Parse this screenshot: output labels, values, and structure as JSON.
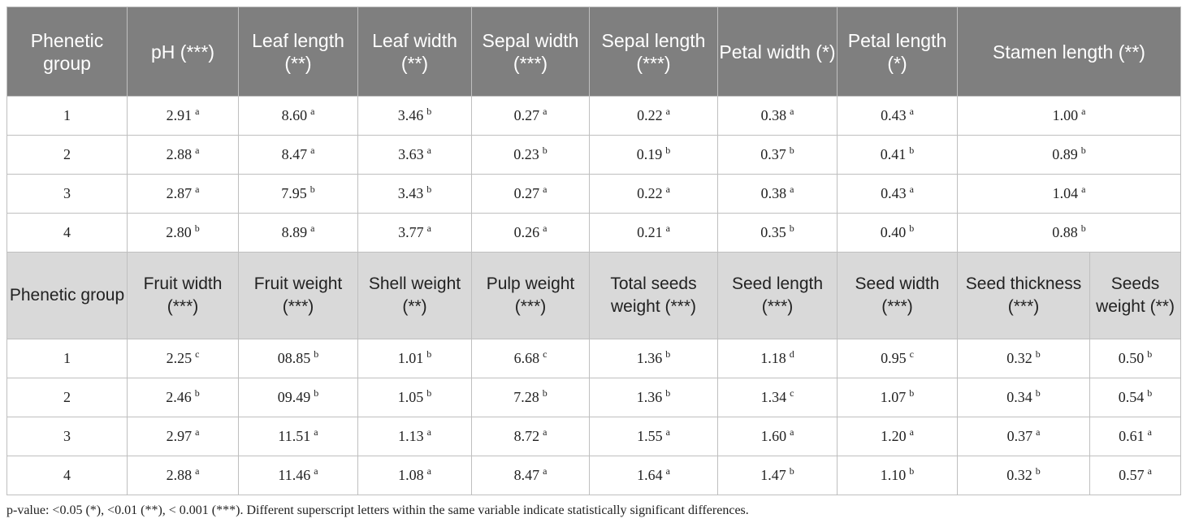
{
  "table1": {
    "headers": [
      "Phenetic group",
      "pH (***)",
      "Leaf length (**)",
      "Leaf width (**)",
      "Sepal width (***)",
      "Sepal length (***)",
      "Petal width (*)",
      "Petal length (*)",
      "Stamen length (**)"
    ],
    "rows": [
      {
        "group": "1",
        "cells": [
          [
            "2.91",
            "a"
          ],
          [
            "8.60",
            "a"
          ],
          [
            "3.46",
            "b"
          ],
          [
            "0.27",
            "a"
          ],
          [
            "0.22",
            "a"
          ],
          [
            "0.38",
            "a"
          ],
          [
            "0.43",
            "a"
          ],
          [
            "1.00",
            "a"
          ]
        ]
      },
      {
        "group": "2",
        "cells": [
          [
            "2.88",
            "a"
          ],
          [
            "8.47",
            "a"
          ],
          [
            "3.63",
            "a"
          ],
          [
            "0.23",
            "b"
          ],
          [
            "0.19",
            "b"
          ],
          [
            "0.37",
            "b"
          ],
          [
            "0.41",
            "b"
          ],
          [
            "0.89",
            "b"
          ]
        ]
      },
      {
        "group": "3",
        "cells": [
          [
            "2.87",
            "a"
          ],
          [
            "7.95",
            "b"
          ],
          [
            "3.43",
            "b"
          ],
          [
            "0.27",
            "a"
          ],
          [
            "0.22",
            "a"
          ],
          [
            "0.38",
            "a"
          ],
          [
            "0.43",
            "a"
          ],
          [
            "1.04",
            "a"
          ]
        ]
      },
      {
        "group": "4",
        "cells": [
          [
            "2.80",
            "b"
          ],
          [
            "8.89",
            "a"
          ],
          [
            "3.77",
            "a"
          ],
          [
            "0.26",
            "a"
          ],
          [
            "0.21",
            "a"
          ],
          [
            "0.35",
            "b"
          ],
          [
            "0.40",
            "b"
          ],
          [
            "0.88",
            "b"
          ]
        ]
      }
    ]
  },
  "table2": {
    "headers": [
      "Phenetic group",
      "Fruit width (***)",
      "Fruit weight (***)",
      "Shell weight (**)",
      "Pulp weight (***)",
      "Total seeds weight (***)",
      "Seed length (***)",
      "Seed width (***)",
      "Seed thickness (***)",
      "Seeds weight (**)"
    ],
    "rows": [
      {
        "group": "1",
        "cells": [
          [
            "2.25",
            "c"
          ],
          [
            "08.85",
            "b"
          ],
          [
            "1.01",
            "b"
          ],
          [
            "6.68",
            "c"
          ],
          [
            "1.36",
            "b"
          ],
          [
            "1.18",
            "d"
          ],
          [
            "0.95",
            "c"
          ],
          [
            "0.32",
            "b"
          ],
          [
            "0.50",
            "b"
          ]
        ]
      },
      {
        "group": "2",
        "cells": [
          [
            "2.46",
            "b"
          ],
          [
            "09.49",
            "b"
          ],
          [
            "1.05",
            "b"
          ],
          [
            "7.28",
            "b"
          ],
          [
            "1.36",
            "b"
          ],
          [
            "1.34",
            "c"
          ],
          [
            "1.07",
            "b"
          ],
          [
            "0.34",
            "b"
          ],
          [
            "0.54",
            "b"
          ]
        ]
      },
      {
        "group": "3",
        "cells": [
          [
            "2.97",
            "a"
          ],
          [
            "11.51",
            "a"
          ],
          [
            "1.13",
            "a"
          ],
          [
            "8.72",
            "a"
          ],
          [
            "1.55",
            "a"
          ],
          [
            "1.60",
            "a"
          ],
          [
            "1.20",
            "a"
          ],
          [
            "0.37",
            "a"
          ],
          [
            "0.61",
            "a"
          ]
        ]
      },
      {
        "group": "4",
        "cells": [
          [
            "2.88",
            "a"
          ],
          [
            "11.46",
            "a"
          ],
          [
            "1.08",
            "a"
          ],
          [
            "8.47",
            "a"
          ],
          [
            "1.64",
            "a"
          ],
          [
            "1.47",
            "b"
          ],
          [
            "1.10",
            "b"
          ],
          [
            "0.32",
            "b"
          ],
          [
            "0.57",
            "a"
          ]
        ]
      }
    ]
  },
  "footnote": "p-value: <0.05 (*), <0.01 (**), < 0.001 (***). Different superscript letters within the same variable indicate statistically significant differences.",
  "colors": {
    "header_dark": "#7f7f7f",
    "header_light": "#d9d9d9",
    "border": "#bfbfbf"
  }
}
